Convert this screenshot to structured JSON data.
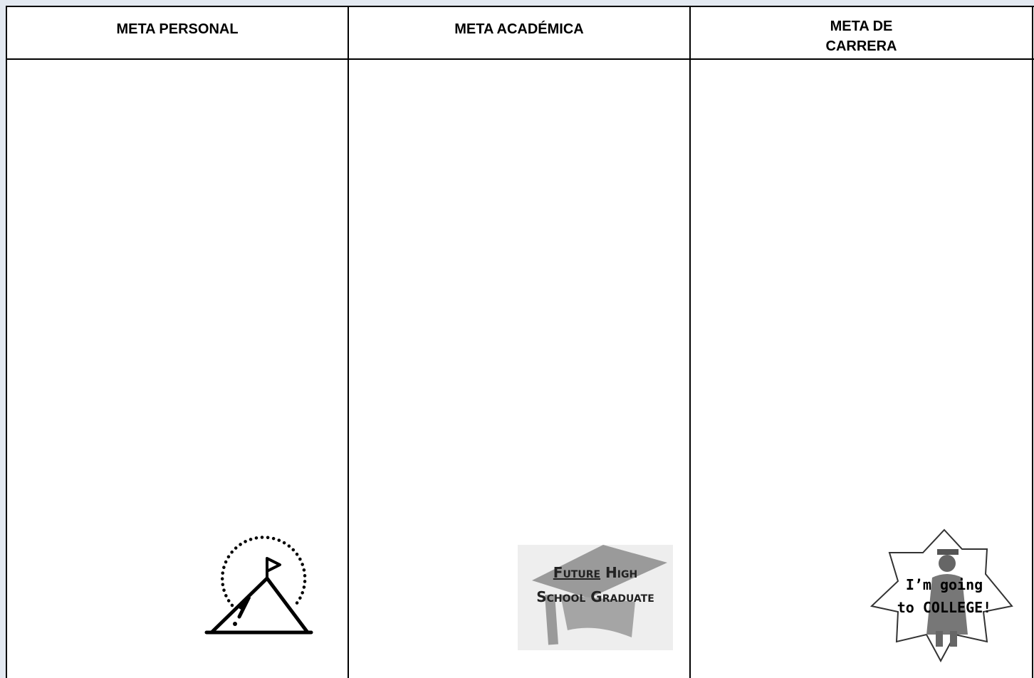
{
  "table": {
    "headers": [
      [
        "META PERSONAL"
      ],
      [
        "META ACADÉMICA"
      ],
      [
        "META DE",
        "CARRERA"
      ]
    ]
  },
  "academic_badge": {
    "underlined": "Future",
    "rest": "High",
    "line2": "School Graduate"
  },
  "career_badge": {
    "lines": [
      "I’m going",
      "to COLLEGE!"
    ]
  }
}
